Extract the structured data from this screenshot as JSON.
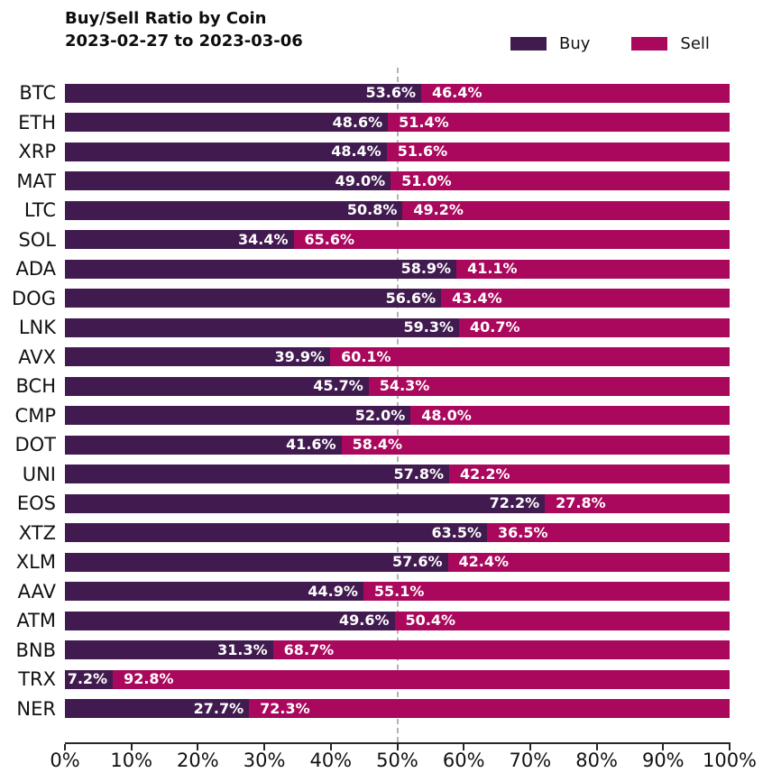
{
  "title": {
    "line1": "Buy/Sell Ratio by Coin",
    "line2": "2023-02-27 to 2023-03-06",
    "full": "Buy/Sell Ratio by Coin\n2023-02-27 to 2023-03-06"
  },
  "legend": {
    "items": [
      {
        "label": "Buy",
        "color": "#411b4f"
      },
      {
        "label": "Sell",
        "color": "#a9085c"
      }
    ]
  },
  "colors": {
    "buy": "#411b4f",
    "sell": "#a9085c",
    "value_text": "#ffffff",
    "reference_line": "#b3b3b3",
    "axis": "#262626",
    "tick_text": "#111111"
  },
  "chart_data": {
    "type": "bar",
    "orientation": "horizontal",
    "stacked": true,
    "title": "Buy/Sell Ratio by Coin 2023-02-27 to 2023-03-06",
    "categories": [
      "BTC",
      "ETH",
      "XRP",
      "MAT",
      "LTC",
      "SOL",
      "ADA",
      "DOG",
      "LNK",
      "AVX",
      "BCH",
      "CMP",
      "DOT",
      "UNI",
      "EOS",
      "XTZ",
      "XLM",
      "AAV",
      "ATM",
      "BNB",
      "TRX",
      "NER"
    ],
    "series": [
      {
        "name": "Buy",
        "values": [
          53.6,
          48.6,
          48.4,
          49.0,
          50.8,
          34.4,
          58.9,
          56.6,
          59.3,
          39.9,
          45.7,
          52.0,
          41.6,
          57.8,
          72.2,
          63.5,
          57.6,
          44.9,
          49.6,
          31.3,
          7.2,
          27.7
        ]
      },
      {
        "name": "Sell",
        "values": [
          46.4,
          51.4,
          51.6,
          51.0,
          49.2,
          65.6,
          41.1,
          43.4,
          40.7,
          60.1,
          54.3,
          48.0,
          58.4,
          42.2,
          27.8,
          36.5,
          42.4,
          55.1,
          50.4,
          68.7,
          92.8,
          72.3
        ]
      }
    ],
    "value_label_format": "{value}%",
    "x_ticks": [
      "0%",
      "10%",
      "20%",
      "30%",
      "40%",
      "50%",
      "60%",
      "70%",
      "80%",
      "90%",
      "100%"
    ],
    "xlim": [
      0,
      100
    ],
    "reference_line_x": 50,
    "grid": false,
    "legend_position": "upper right",
    "legend_entries": [
      "Buy",
      "Sell"
    ]
  }
}
